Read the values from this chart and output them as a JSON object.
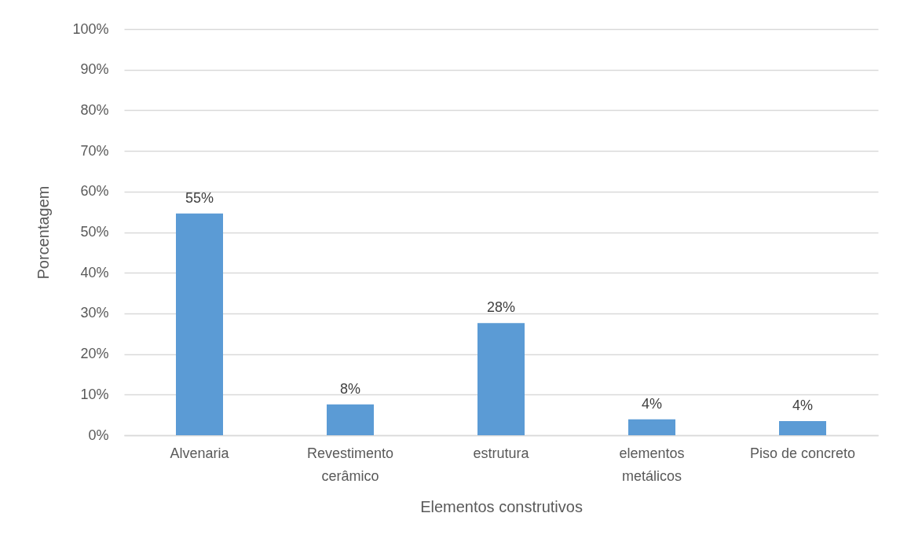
{
  "chart_data": {
    "type": "bar",
    "xlabel": "Elementos construtivos",
    "ylabel": "Porcentagem",
    "categories": [
      "Alvenaria",
      "Revestimento cerâmico",
      "estrutura",
      "elementos metálicos",
      "Piso de concreto"
    ],
    "values": [
      54.6,
      7.6,
      27.6,
      3.9,
      3.5
    ],
    "color": "#5b9bd5",
    "value_labels": [
      "55%",
      "8%",
      "28%",
      "4%",
      "4%"
    ],
    "ylim": [
      0,
      100
    ],
    "yticks": [
      {
        "value": 0,
        "label": "0%"
      },
      {
        "value": 10,
        "label": "10%"
      },
      {
        "value": 20,
        "label": "20%"
      },
      {
        "value": 30,
        "label": "30%"
      },
      {
        "value": 40,
        "label": "40%"
      },
      {
        "value": 50,
        "label": "50%"
      },
      {
        "value": 60,
        "label": "60%"
      },
      {
        "value": 70,
        "label": "70%"
      },
      {
        "value": 80,
        "label": "80%"
      },
      {
        "value": 90,
        "label": "90%"
      },
      {
        "value": 100,
        "label": "100%"
      }
    ],
    "grid": "y"
  }
}
